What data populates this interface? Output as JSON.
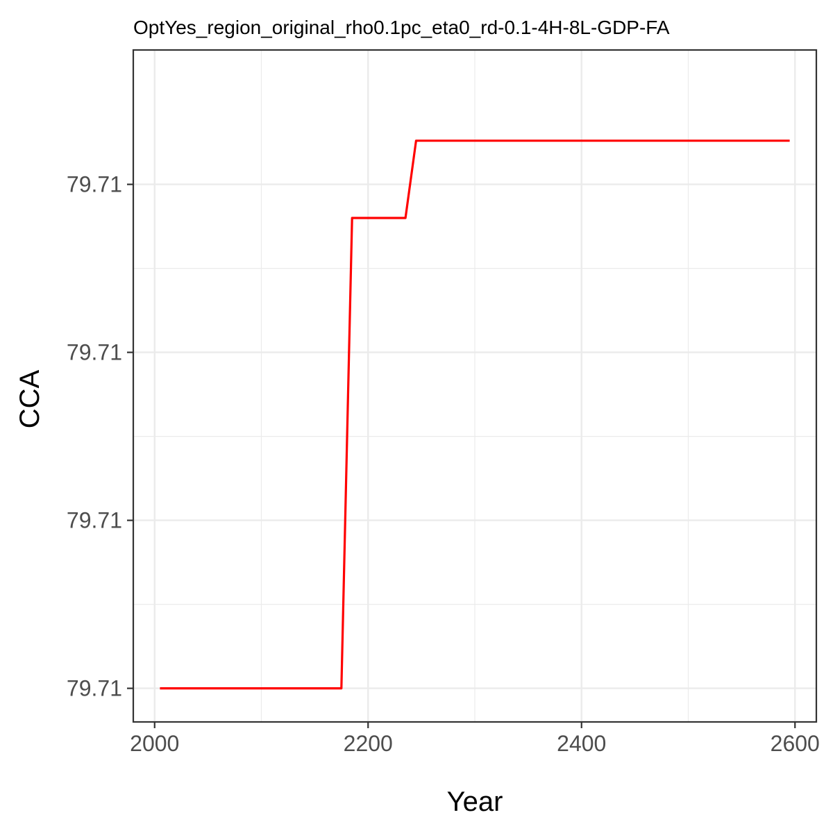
{
  "chart_data": {
    "type": "line",
    "title": "OptYes_region_original_rho0.1pc_eta0_rd-0.1-4H-8L-GDP-FA",
    "xlabel": "Year",
    "ylabel": "CCA",
    "xlim": [
      1980,
      2620
    ],
    "ylim": [
      0.0,
      1.0
    ],
    "x_ticks": [
      2000,
      2200,
      2400,
      2600
    ],
    "x_tick_labels": [
      "2000",
      "2200",
      "2400",
      "2600"
    ],
    "y_ticks": [
      0.05,
      0.3,
      0.55,
      0.8
    ],
    "y_tick_labels": [
      "79.71",
      "79.71",
      "79.71",
      "79.71"
    ],
    "grid": true,
    "series": [
      {
        "color": "#ff0000",
        "x": [
          2005,
          2175,
          2185,
          2235,
          2245,
          2595
        ],
        "y": [
          0.05,
          0.05,
          0.75,
          0.75,
          0.865,
          0.865
        ]
      }
    ]
  }
}
